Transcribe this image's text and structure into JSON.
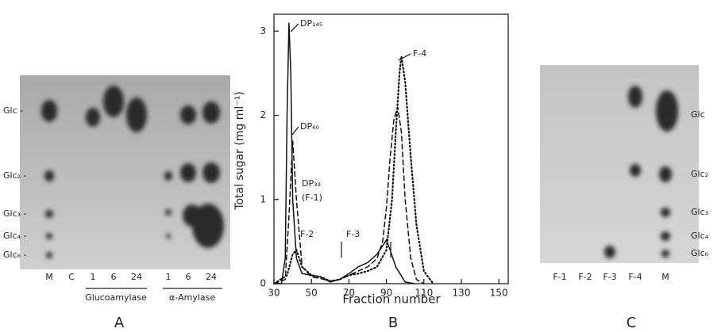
{
  "panel_a": {
    "letter": "A",
    "spot_labels": [
      "Glc -",
      "Glc₂ -",
      "Glc₃ -",
      "Glc₄ -",
      "Glc₆ -"
    ],
    "lanes": [
      "M",
      "C",
      "1",
      "6",
      "24",
      "1",
      "6",
      "24"
    ],
    "groups": [
      "Glucoamylase",
      "α-Amylase"
    ]
  },
  "chart_data": {
    "type": "line",
    "letter": "B",
    "x_label": "Fraction number",
    "y_label": "Total sugar (mg ml⁻¹)",
    "xlim": [
      30,
      155
    ],
    "ylim": [
      0,
      3.2
    ],
    "xticks": [
      30,
      50,
      70,
      90,
      110,
      130,
      150
    ],
    "yticks": [
      0,
      1,
      2,
      3
    ],
    "annotations": [
      "DP₁₄₅",
      "DP₆₀",
      "DP₃₃",
      "(F-1)",
      "F-2",
      "F-3",
      "F-4"
    ],
    "series": [
      {
        "color": "#111",
        "dash": "solid",
        "x": [
          30,
          34,
          36,
          37,
          38,
          39,
          40,
          42,
          45,
          50,
          55,
          60,
          65,
          70,
          75,
          80,
          85,
          88,
          90,
          92,
          95,
          100,
          105
        ],
        "values": [
          0,
          0,
          0.3,
          2.0,
          3.1,
          2.5,
          1.0,
          0.3,
          0.12,
          0.1,
          0.08,
          0.02,
          0.05,
          0.12,
          0.2,
          0.25,
          0.35,
          0.45,
          0.52,
          0.4,
          0.2,
          0.02,
          0
        ]
      },
      {
        "color": "#111",
        "dash": "dashed",
        "x": [
          30,
          36,
          38,
          40,
          42,
          45,
          50,
          55,
          60,
          65,
          70,
          75,
          80,
          85,
          88,
          90,
          92,
          94,
          96,
          98,
          100,
          103,
          106,
          110
        ],
        "values": [
          0,
          0.05,
          0.8,
          1.7,
          1.0,
          0.2,
          0.08,
          0.06,
          0.03,
          0.05,
          0.1,
          0.15,
          0.2,
          0.3,
          0.5,
          0.9,
          1.5,
          1.95,
          2.1,
          1.8,
          1.0,
          0.3,
          0.05,
          0
        ]
      },
      {
        "color": "#111",
        "dash": "dotted",
        "x": [
          30,
          37,
          40,
          42,
          45,
          50,
          55,
          60,
          65,
          70,
          75,
          80,
          85,
          90,
          93,
          95,
          97,
          98,
          100,
          103,
          106,
          110,
          115
        ],
        "values": [
          0,
          0.1,
          0.35,
          0.4,
          0.2,
          0.1,
          0.08,
          0.03,
          0.05,
          0.1,
          0.12,
          0.15,
          0.2,
          0.4,
          1.0,
          1.8,
          2.5,
          2.7,
          2.4,
          1.5,
          0.7,
          0.15,
          0
        ]
      }
    ]
  },
  "panel_c": {
    "letter": "C",
    "spot_labels": [
      "Glc",
      "Glc₂",
      "Glc₃",
      "Glc₄",
      "Glc₆"
    ],
    "lanes": [
      "F-1",
      "F-2",
      "F-3",
      "F-4",
      "M"
    ]
  }
}
